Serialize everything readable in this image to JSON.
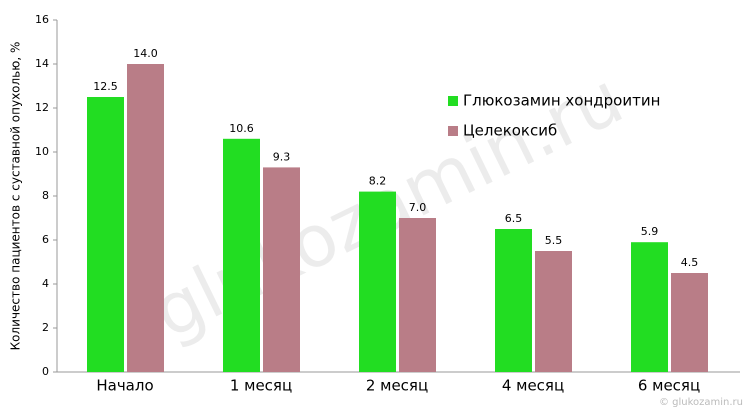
{
  "chart_data": {
    "type": "bar",
    "y_label": "Количество пациентов с суставной опухолью, %",
    "categories": [
      "Начало",
      "1 месяц",
      "2 месяц",
      "4 месяц",
      "6 месяц"
    ],
    "series": [
      {
        "name": "Глюкозамин хондроитин",
        "color": "#22dd22",
        "values": [
          12.5,
          10.6,
          8.2,
          6.5,
          5.9
        ],
        "value_labels": [
          "12.5",
          "10.6",
          "8.2",
          "6.5",
          "5.9"
        ]
      },
      {
        "name": "Целекоксиб",
        "color": "#b97d87",
        "values": [
          14.0,
          9.3,
          7.0,
          5.5,
          4.5
        ],
        "value_labels": [
          "14.0",
          "9.3",
          "7.0",
          "5.5",
          "4.5"
        ]
      }
    ],
    "ylim": [
      0,
      16
    ],
    "yticks": [
      0,
      2,
      4,
      6,
      8,
      10,
      12,
      14,
      16
    ],
    "grid": false,
    "legend": "right",
    "watermark": "glukozamin.ru",
    "copyright": "© glukozamin.ru"
  }
}
